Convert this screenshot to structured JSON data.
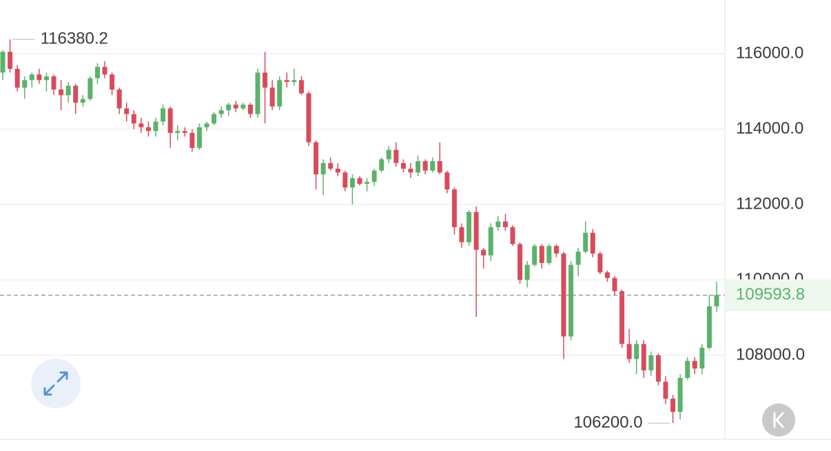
{
  "chart_data": {
    "type": "candlestick",
    "open": [
      115500,
      116050,
      115600,
      115100,
      115300,
      115450,
      115300,
      115400,
      115050,
      114900,
      115150,
      114700,
      114800,
      115350,
      115650,
      115450,
      115050,
      114550,
      114400,
      114150,
      114050,
      113950,
      114200,
      114550,
      113900,
      113950,
      113900,
      113500,
      114050,
      114150,
      114400,
      114500,
      114650,
      114550,
      114650,
      114400,
      115500,
      115100,
      114600,
      115300,
      115250,
      115300,
      114950,
      113650,
      112800,
      113100,
      112950,
      112850,
      112450,
      112700,
      112550,
      112600,
      112900,
      113200,
      113450,
      113100,
      112950,
      112850,
      113150,
      112900,
      113150,
      112850,
      112400,
      111400,
      111000,
      111800,
      110800,
      110650,
      111400,
      111550,
      111400,
      110950,
      110000,
      110400,
      110900,
      110450,
      110900,
      110700,
      108500,
      110400,
      110750,
      111250,
      110700,
      110200,
      110050,
      109700,
      108300,
      107900,
      108300,
      107600,
      108000,
      107300,
      106850,
      106500,
      107400,
      107850,
      107650,
      108200,
      109300
    ],
    "high": [
      116100,
      116380.2,
      115700,
      115400,
      115500,
      115600,
      115500,
      115450,
      115300,
      115250,
      115200,
      114900,
      115400,
      115750,
      115800,
      115500,
      115100,
      114700,
      114500,
      114300,
      114200,
      114300,
      114650,
      114600,
      114100,
      114050,
      114000,
      114150,
      114200,
      114450,
      114600,
      114700,
      114750,
      114700,
      114700,
      115600,
      116050,
      115300,
      115400,
      115500,
      115600,
      115400,
      115000,
      113700,
      113200,
      113250,
      113100,
      112900,
      112800,
      112750,
      112700,
      112950,
      113250,
      113550,
      113650,
      113200,
      113100,
      113300,
      113200,
      113250,
      113650,
      112900,
      112450,
      111500,
      111850,
      111950,
      110850,
      111500,
      111700,
      111750,
      111450,
      111000,
      110500,
      110950,
      110950,
      110950,
      110950,
      110750,
      110500,
      110850,
      111550,
      111350,
      110750,
      110250,
      110100,
      109750,
      108700,
      108400,
      108400,
      108100,
      108050,
      107450,
      106950,
      107500,
      107950,
      107950,
      108300,
      109600,
      109950
    ],
    "low": [
      115300,
      115500,
      115000,
      114800,
      115100,
      115200,
      115000,
      114900,
      114500,
      114700,
      114400,
      114600,
      114750,
      115200,
      115350,
      114900,
      114400,
      114200,
      114000,
      113900,
      113800,
      113800,
      114100,
      113500,
      113700,
      113800,
      113400,
      113450,
      113950,
      114100,
      114300,
      114350,
      114450,
      114500,
      114300,
      114300,
      114150,
      114500,
      114500,
      115100,
      115150,
      114900,
      113550,
      112400,
      112250,
      112900,
      112750,
      112350,
      112000,
      112500,
      112350,
      112500,
      112850,
      113100,
      113000,
      112850,
      112700,
      112750,
      112800,
      112850,
      112800,
      112300,
      111200,
      110850,
      110900,
      109020,
      110300,
      110500,
      111300,
      111300,
      110900,
      109900,
      109800,
      110350,
      110300,
      110400,
      110600,
      107900,
      108400,
      110100,
      110700,
      110600,
      110150,
      109950,
      109600,
      108200,
      107800,
      107500,
      107400,
      107450,
      107200,
      106700,
      106200,
      106300,
      107350,
      107500,
      107500,
      108150,
      109150
    ],
    "close": [
      116050,
      115600,
      115100,
      115300,
      115450,
      115300,
      115400,
      115050,
      114900,
      115150,
      114700,
      114800,
      115350,
      115650,
      115450,
      115050,
      114550,
      114400,
      114150,
      114050,
      113950,
      114200,
      114550,
      113900,
      113950,
      113900,
      113500,
      114050,
      114150,
      114400,
      114500,
      114650,
      114550,
      114650,
      114400,
      115500,
      115100,
      114600,
      115300,
      115250,
      115300,
      114950,
      113650,
      112800,
      113100,
      112950,
      112850,
      112450,
      112700,
      112550,
      112600,
      112900,
      113200,
      113450,
      113100,
      112950,
      112850,
      113150,
      112900,
      113150,
      112850,
      112400,
      111400,
      111000,
      111800,
      110800,
      110650,
      111400,
      111550,
      111400,
      110950,
      110000,
      110400,
      110900,
      110450,
      110900,
      110700,
      108500,
      110400,
      110750,
      111250,
      110700,
      110200,
      110050,
      109700,
      108300,
      107900,
      108300,
      107600,
      108000,
      107300,
      106850,
      106500,
      107400,
      107850,
      107650,
      108200,
      109300,
      109593.8
    ],
    "up_color": "#5bb26a",
    "down_color": "#d84b5c",
    "ylim": [
      105772,
      117425
    ],
    "yticks": [
      {
        "value": 108000,
        "label": "108000.0"
      },
      {
        "value": 110000,
        "label": "110000.0"
      },
      {
        "value": 112000,
        "label": "112000.0"
      },
      {
        "value": 114000,
        "label": "114000.0"
      },
      {
        "value": 116000,
        "label": "116000.0"
      }
    ],
    "grid": true,
    "last_price": 109593.8,
    "max_label": 116380.2,
    "min_label": {
      "value": 106200,
      "label": "106200.0"
    }
  }
}
